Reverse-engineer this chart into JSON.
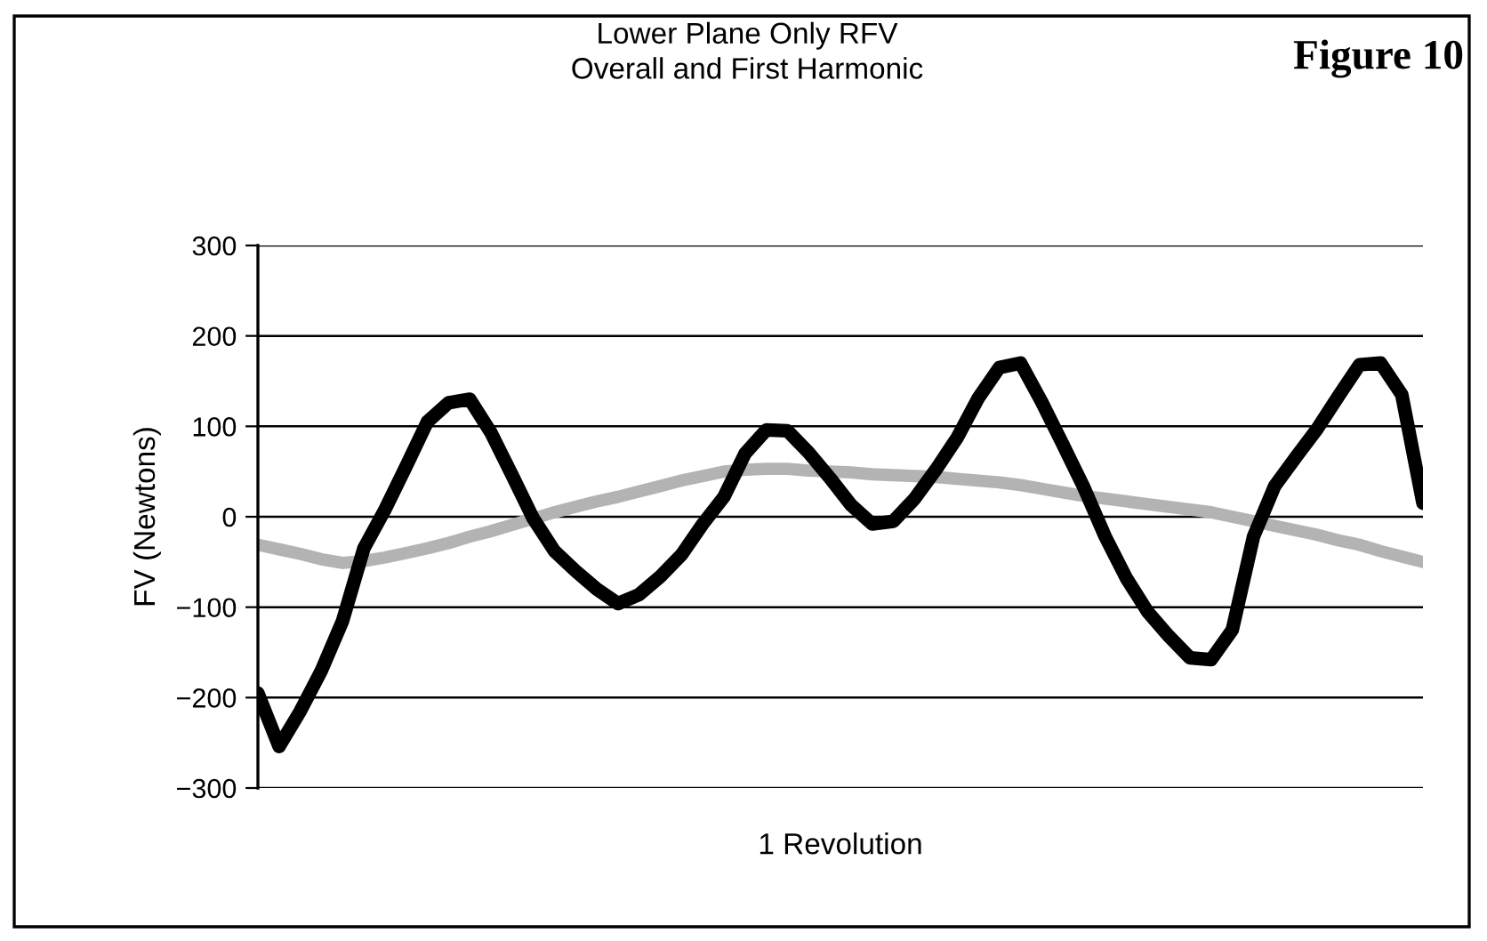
{
  "chart_data": {
    "type": "line",
    "title": "Lower Plane Only RFV\nOverall and First Harmonic",
    "xlabel": "1 Revolution",
    "ylabel": "FV (Newtons)",
    "annotations": [
      "Figure 10"
    ],
    "categories": [
      null,
      null,
      null,
      null,
      null,
      null,
      null,
      null,
      null,
      null,
      null,
      null,
      null,
      null,
      null,
      null,
      null,
      null,
      null,
      null,
      null,
      null,
      null,
      null,
      null,
      null,
      null,
      null,
      null,
      null,
      null,
      null,
      null,
      null,
      null,
      null,
      null,
      null,
      null,
      null,
      null,
      null,
      null,
      null,
      null,
      null,
      null,
      null,
      null,
      null,
      null,
      null,
      null,
      null,
      null,
      null
    ],
    "series": [
      {
        "color": "#000000",
        "values": [
          -195,
          -254,
          -215,
          -170,
          -115,
          -35,
          8,
          56,
          105,
          126,
          130,
          93,
          46,
          -2,
          -38,
          -60,
          -80,
          -96,
          -86,
          -66,
          -42,
          -8,
          22,
          70,
          96,
          95,
          71,
          43,
          13,
          -8,
          -5,
          20,
          52,
          87,
          131,
          165,
          170,
          127,
          80,
          32,
          -22,
          -68,
          -105,
          -132,
          -156,
          -158,
          -125,
          -22,
          34,
          66,
          97,
          133,
          168,
          170,
          135,
          15
        ]
      },
      {
        "color": "#b3b3b3",
        "values": [
          -31,
          -36,
          -41,
          -47,
          -51,
          -49,
          -45,
          -40,
          -35,
          -29,
          -22,
          -16,
          -9,
          -2,
          5,
          11,
          17,
          22,
          28,
          34,
          40,
          45,
          50,
          52,
          53,
          53,
          51,
          50,
          49,
          47,
          46,
          45,
          44,
          42,
          40,
          38,
          35,
          31,
          27,
          23,
          20,
          17,
          14,
          11,
          8,
          5,
          0,
          -5,
          -10,
          -15,
          -20,
          -26,
          -31,
          -38,
          -44,
          -50
        ]
      }
    ],
    "ylim": [
      -300,
      300
    ],
    "yticks": [
      {
        "value": -300,
        "label": "−300"
      },
      {
        "value": -200,
        "label": "−200"
      },
      {
        "value": -100,
        "label": "−100"
      },
      0,
      100,
      200,
      300
    ],
    "grid": "y",
    "legend": false,
    "marker": "none",
    "line_style": "solid"
  }
}
